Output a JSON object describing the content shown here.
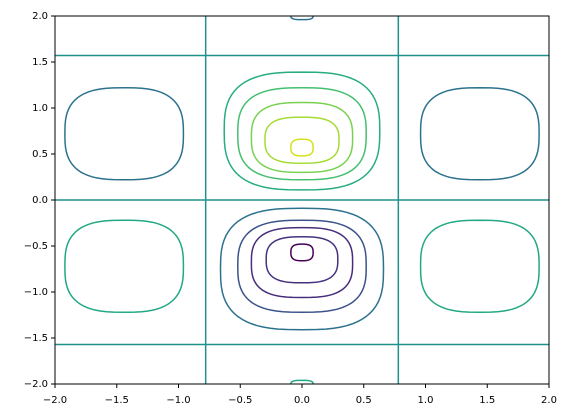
{
  "chart_data": {
    "type": "contour",
    "xlim": [
      -2,
      2
    ],
    "ylim": [
      -2,
      2
    ],
    "xticks": [
      {
        "value": -2,
        "label": "−2.0"
      },
      {
        "value": -1.5,
        "label": "−1.5"
      },
      {
        "value": -1,
        "label": "−1.0"
      },
      {
        "value": -0.5,
        "label": "−0.5"
      },
      {
        "value": 0,
        "label": "0.0"
      },
      {
        "value": 0.5,
        "label": "0.5"
      },
      {
        "value": 1,
        "label": "1.0"
      },
      {
        "value": 1.5,
        "label": "1.5"
      },
      {
        "value": 2,
        "label": "2.0"
      }
    ],
    "yticks": [
      {
        "value": -2,
        "label": "−2.0"
      },
      {
        "value": -1.5,
        "label": "−1.5"
      },
      {
        "value": -1,
        "label": "−1.0"
      },
      {
        "value": -0.5,
        "label": "−0.5"
      },
      {
        "value": 0,
        "label": "0.0"
      },
      {
        "value": 0.5,
        "label": "0.5"
      },
      {
        "value": 1,
        "label": "1.0"
      },
      {
        "value": 1.5,
        "label": "1.5"
      },
      {
        "value": 2,
        "label": "2.0"
      }
    ],
    "zero_lines": {
      "color": "#21918c",
      "x": [
        -0.78,
        0.78
      ],
      "y": [
        -1.57,
        0,
        1.57
      ]
    },
    "contours": [
      {
        "color": "#27ad81",
        "cx": 0,
        "cy": 0.75,
        "rx": 0.63,
        "ry": 0.64
      },
      {
        "color": "#44bf70",
        "cx": 0,
        "cy": 0.72,
        "rx": 0.52,
        "ry": 0.5
      },
      {
        "color": "#7ad151",
        "cx": 0,
        "cy": 0.68,
        "rx": 0.41,
        "ry": 0.38
      },
      {
        "color": "#a5db36",
        "cx": 0,
        "cy": 0.65,
        "rx": 0.3,
        "ry": 0.25
      },
      {
        "color": "#d2e21b",
        "cx": 0,
        "cy": 0.57,
        "rx": 0.09,
        "ry": 0.09
      },
      {
        "color": "#2c728e",
        "cx": 0,
        "cy": -0.75,
        "rx": 0.66,
        "ry": 0.66
      },
      {
        "color": "#3b528b",
        "cx": 0,
        "cy": -0.72,
        "rx": 0.52,
        "ry": 0.5
      },
      {
        "color": "#472d7b",
        "cx": 0,
        "cy": -0.68,
        "rx": 0.41,
        "ry": 0.38
      },
      {
        "color": "#46327e",
        "cx": 0,
        "cy": -0.65,
        "rx": 0.29,
        "ry": 0.25
      },
      {
        "color": "#440154",
        "cx": 0,
        "cy": -0.57,
        "rx": 0.09,
        "ry": 0.09
      },
      {
        "color": "#2c728e",
        "cx": -1.44,
        "cy": 0.72,
        "rx": 0.48,
        "ry": 0.5
      },
      {
        "color": "#2c728e",
        "cx": 1.44,
        "cy": 0.72,
        "rx": 0.48,
        "ry": 0.5
      },
      {
        "color": "#22a884",
        "cx": -1.44,
        "cy": -0.72,
        "rx": 0.48,
        "ry": 0.5
      },
      {
        "color": "#22a884",
        "cx": 1.44,
        "cy": -0.72,
        "rx": 0.48,
        "ry": 0.5
      },
      {
        "color": "#2c728e",
        "cx": 0,
        "cy": 2.0,
        "rx": 0.09,
        "ry": 0.04
      },
      {
        "color": "#22a884",
        "cx": 0,
        "cy": -2.0,
        "rx": 0.09,
        "ry": 0.04
      }
    ]
  }
}
